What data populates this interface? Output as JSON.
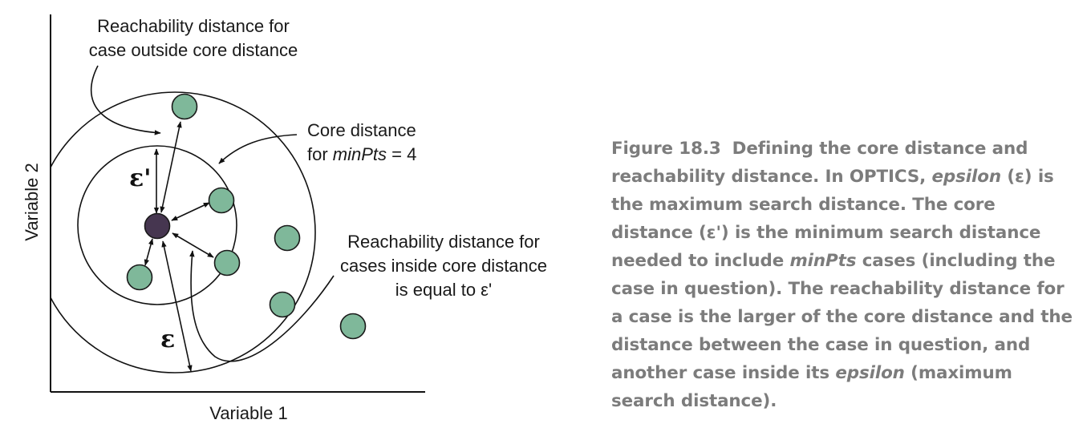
{
  "diagram": {
    "x_axis_label": "Variable 1",
    "y_axis_label": "Variable 2",
    "annotations": {
      "reach_outside_line1": "Reachability distance for",
      "reach_outside_line2": "case outside core distance",
      "core_line1": "Core distance",
      "core_line2_prefix": "for ",
      "core_line2_italic": "minPts",
      "core_line2_suffix": " = 4",
      "reach_inside_line1": "Reachability distance for",
      "reach_inside_line2": "cases inside core distance",
      "reach_inside_line3": "is equal to ε'"
    },
    "epsilon_label": "ε",
    "epsilon_prime_label": "ε'",
    "colors": {
      "case_fill": "#7fb89a",
      "case_stroke": "#1a1a1a",
      "core_case_fill": "#463650",
      "line": "#111111"
    }
  },
  "caption": {
    "label": "Figure 18.3",
    "parts": [
      {
        "text": "Defining the core distance and reachability distance. In OPTICS, ",
        "italic": false
      },
      {
        "text": "epsilon",
        "italic": true
      },
      {
        "text": " (ε) is the maximum search distance. The core distance (ε') is the minimum search distance needed to include ",
        "italic": false
      },
      {
        "text": "minPts",
        "italic": true
      },
      {
        "text": " cases (including the case in question). The reachability distance for a case is the larger of the core distance and the distance between the case in question, and another case inside its ",
        "italic": false
      },
      {
        "text": "epsilon",
        "italic": true
      },
      {
        "text": " (maximum search distance).",
        "italic": false
      }
    ]
  }
}
